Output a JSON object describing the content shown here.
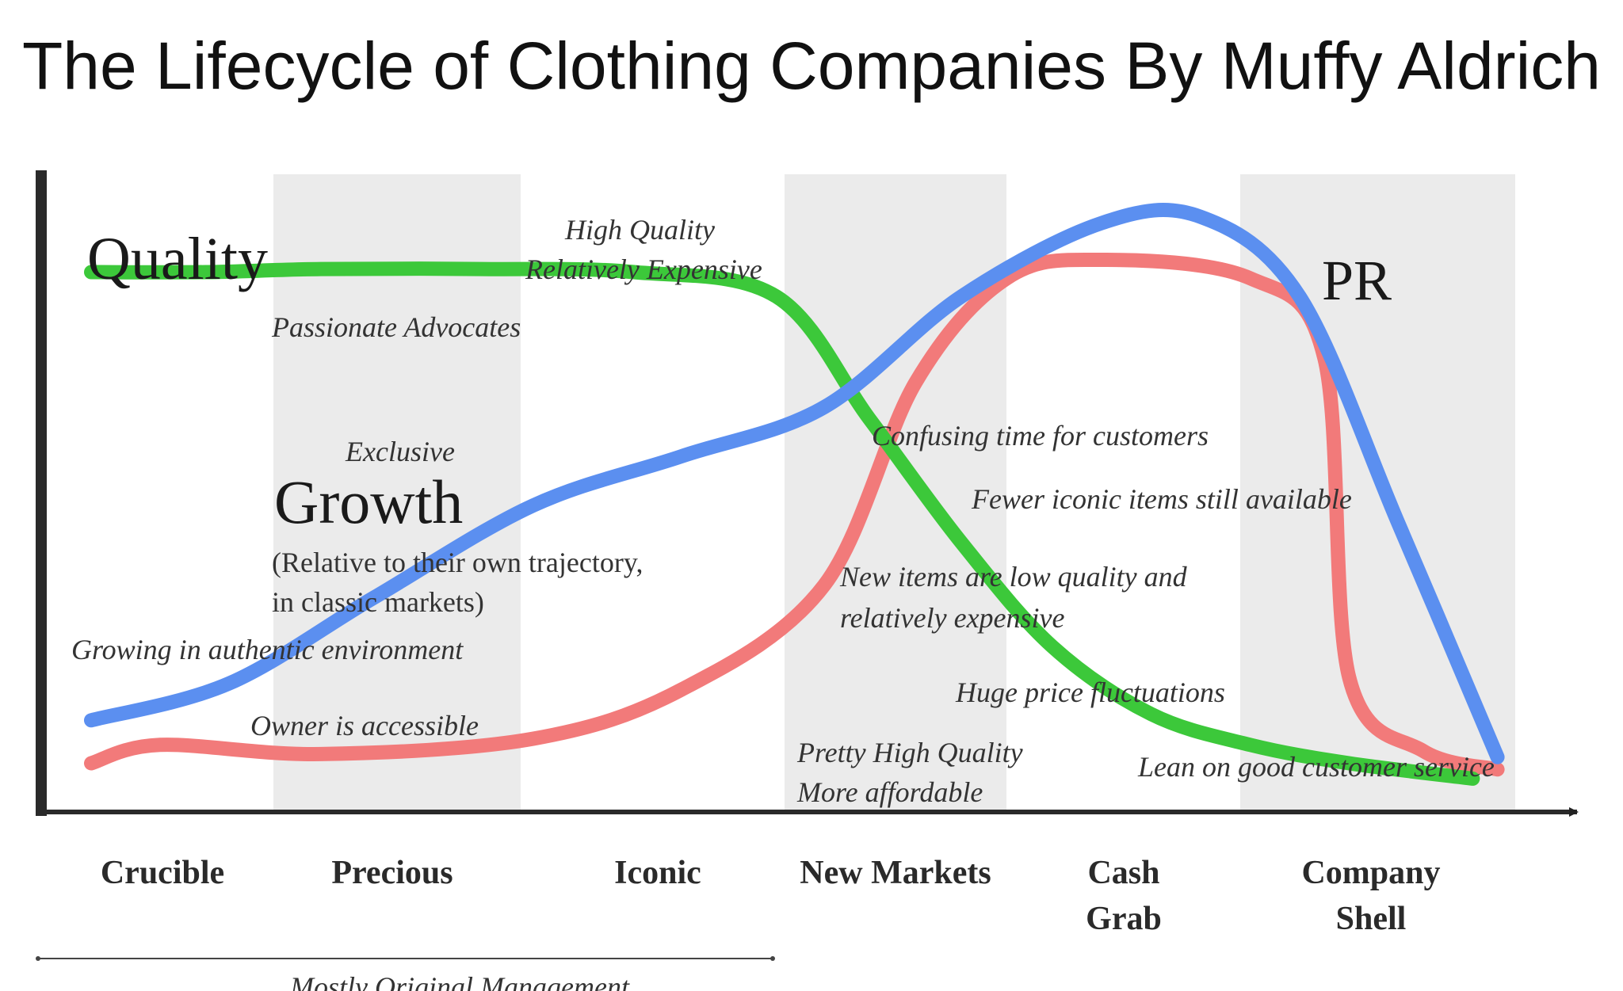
{
  "title": "The Lifecycle of Clothing Companies By Muffy Aldrich",
  "chart_data": {
    "type": "line",
    "x_unit": "stage",
    "stages": [
      "Crucible",
      "Precious",
      "Iconic",
      "New Markets",
      "Cash Grab",
      "Company Shell"
    ],
    "stage_labels": [
      {
        "lines": [
          "Crucible"
        ]
      },
      {
        "lines": [
          "Precious"
        ]
      },
      {
        "lines": [
          "Iconic"
        ]
      },
      {
        "lines": [
          "New Markets"
        ]
      },
      {
        "lines": [
          "Cash",
          "Grab"
        ]
      },
      {
        "lines": [
          "Company",
          "Shell"
        ]
      }
    ],
    "shaded_stages": [
      "Precious",
      "New Markets",
      "Company Shell"
    ],
    "y_axis_ticks": false,
    "grid": false,
    "series": [
      {
        "name": "Quality",
        "color": "#3cc83a",
        "points": [
          [
            0.0,
            0.86
          ],
          [
            0.5,
            0.86
          ],
          [
            1.0,
            0.865
          ],
          [
            1.6,
            0.865
          ],
          [
            2.2,
            0.86
          ],
          [
            2.8,
            0.82
          ],
          [
            3.2,
            0.62
          ],
          [
            3.6,
            0.42
          ],
          [
            4.0,
            0.25
          ],
          [
            4.4,
            0.14
          ],
          [
            4.8,
            0.09
          ],
          [
            5.2,
            0.06
          ],
          [
            5.7,
            0.035
          ]
        ]
      },
      {
        "name": "Growth",
        "color": "#5b8ff0",
        "points": [
          [
            0.0,
            0.13
          ],
          [
            0.6,
            0.19
          ],
          [
            1.2,
            0.33
          ],
          [
            1.8,
            0.48
          ],
          [
            2.4,
            0.56
          ],
          [
            3.0,
            0.64
          ],
          [
            3.6,
            0.82
          ],
          [
            4.2,
            0.94
          ],
          [
            4.6,
            0.95
          ],
          [
            5.0,
            0.82
          ],
          [
            5.4,
            0.45
          ],
          [
            5.8,
            0.07
          ]
        ]
      },
      {
        "name": "PR",
        "color": "#f27a7a",
        "points": [
          [
            0.0,
            0.06
          ],
          [
            0.3,
            0.09
          ],
          [
            1.0,
            0.075
          ],
          [
            1.8,
            0.1
          ],
          [
            2.4,
            0.18
          ],
          [
            3.0,
            0.35
          ],
          [
            3.4,
            0.68
          ],
          [
            3.8,
            0.85
          ],
          [
            4.2,
            0.88
          ],
          [
            4.8,
            0.85
          ],
          [
            5.1,
            0.72
          ],
          [
            5.2,
            0.2
          ],
          [
            5.5,
            0.08
          ],
          [
            5.8,
            0.05
          ]
        ]
      }
    ],
    "annotations": [
      {
        "text": "Passionate Advocates",
        "stage": "Precious"
      },
      {
        "text": "High Quality",
        "stage": "Iconic"
      },
      {
        "text": "Relatively Expensive",
        "stage": "Iconic"
      },
      {
        "text": "Exclusive",
        "stage": "Precious"
      },
      {
        "text": "Growing in authentic environment",
        "stage": "Crucible"
      },
      {
        "text": "Owner is accessible",
        "stage": "Precious"
      },
      {
        "text": "Confusing time for customers",
        "stage": "New Markets"
      },
      {
        "text": "Fewer iconic items still available",
        "stage": "Cash Grab"
      },
      {
        "text": "New items are low quality and",
        "stage": "New Markets"
      },
      {
        "text": "relatively expensive",
        "stage": "New Markets"
      },
      {
        "text": "Huge price fluctuations",
        "stage": "Cash Grab"
      },
      {
        "text": "Pretty High Quality",
        "stage": "New Markets"
      },
      {
        "text": "More affordable",
        "stage": "New Markets"
      },
      {
        "text": "Lean on good customer service",
        "stage": "Company Shell"
      }
    ],
    "growth_note": [
      "(Relative to their own trajectory,",
      "in classic markets)"
    ],
    "bracket_label": "Mostly Original Management",
    "bracket_span": [
      "Crucible",
      "Iconic"
    ]
  }
}
